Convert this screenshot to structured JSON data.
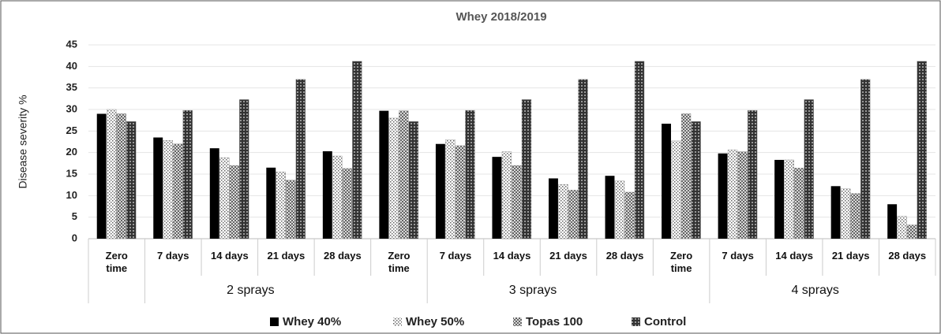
{
  "chart_data": {
    "type": "bar",
    "title": "Whey 2018/2019",
    "y_label": "Disease severity %",
    "categories": [
      "Zero time",
      "7 days",
      "14 days",
      "21 days",
      "28 days",
      "Zero time",
      "7 days",
      "14 days",
      "21 days",
      "28 days",
      "Zero time",
      "7 days",
      "14 days",
      "21 days",
      "28 days"
    ],
    "groups": [
      "2 sprays",
      "3 sprays",
      "4 sprays"
    ],
    "series": [
      {
        "name": "Whey 40%",
        "color": "#000000",
        "values": [
          29,
          23.5,
          21,
          16.5,
          20.3,
          29.7,
          22,
          19,
          14,
          14.6,
          26.7,
          19.8,
          18.3,
          12.2,
          8
        ]
      },
      {
        "name": "Whey 50%",
        "color": "#666666",
        "values": [
          30,
          22.8,
          18.8,
          15.5,
          19.2,
          28,
          23,
          20.2,
          12.6,
          13.4,
          22.7,
          20.6,
          18.3,
          11.6,
          5.2
        ]
      },
      {
        "name": "Topas 100",
        "color": "#555555",
        "values": [
          29,
          22,
          17,
          13.6,
          16.3,
          29.7,
          21.6,
          17,
          11.3,
          10.8,
          29,
          20.2,
          16.4,
          10.5,
          3.2
        ]
      },
      {
        "name": "Control",
        "color": "#333333",
        "values": [
          27.2,
          29.8,
          32.3,
          37,
          41.2,
          27.2,
          29.8,
          32.3,
          37,
          41.2,
          27.2,
          29.8,
          32.3,
          37,
          41.2
        ]
      }
    ],
    "ylim": [
      0,
      45
    ],
    "yticks": [
      0,
      5,
      10,
      15,
      20,
      25,
      30,
      35,
      40,
      45
    ],
    "grid": true
  }
}
